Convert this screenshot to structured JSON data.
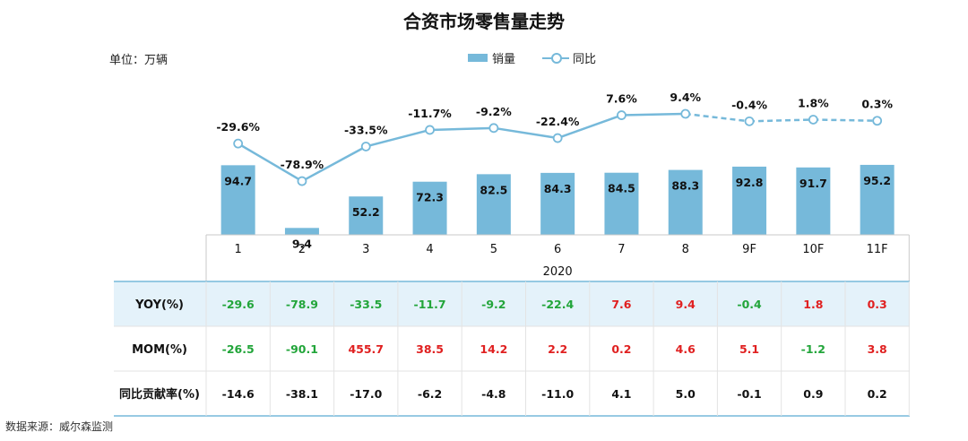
{
  "chart_data": {
    "type": "bar",
    "title": "合资市场零售量走势",
    "unit_label": "单位：万辆",
    "categories": [
      "1",
      "2",
      "3",
      "4",
      "5",
      "6",
      "7",
      "8",
      "9F",
      "10F",
      "11F"
    ],
    "year_label": "2020",
    "series": [
      {
        "name": "销量",
        "type": "bar",
        "values": [
          94.7,
          9.4,
          52.2,
          72.3,
          82.5,
          84.3,
          84.5,
          88.3,
          92.8,
          91.7,
          95.2
        ]
      },
      {
        "name": "同比",
        "type": "line",
        "values": [
          -29.6,
          -78.9,
          -33.5,
          -11.7,
          -9.2,
          -22.4,
          7.6,
          9.4,
          -0.4,
          1.8,
          0.3
        ],
        "labels": [
          "-29.6%",
          "-78.9%",
          "-33.5%",
          "-11.7%",
          "-9.2%",
          "-22.4%",
          "7.6%",
          "9.4%",
          "-0.4%",
          "1.8%",
          "0.3%"
        ],
        "dashed_from_index": 8
      }
    ],
    "table": {
      "rows": [
        {
          "label": "YOY(%)",
          "values": [
            "-29.6",
            "-78.9",
            "-33.5",
            "-11.7",
            "-9.2",
            "-22.4",
            "7.6",
            "9.4",
            "-0.4",
            "1.8",
            "0.3"
          ],
          "highlight": true
        },
        {
          "label": "MOM(%)",
          "values": [
            "-26.5",
            "-90.1",
            "455.7",
            "38.5",
            "14.2",
            "2.2",
            "0.2",
            "4.6",
            "5.1",
            "-1.2",
            "3.8"
          ],
          "highlight": false
        },
        {
          "label": "同比贡献率(%)",
          "values": [
            "-14.6",
            "-38.1",
            "-17.0",
            "-6.2",
            "-4.8",
            "-11.0",
            "4.1",
            "5.0",
            "-0.1",
            "0.9",
            "0.2"
          ],
          "highlight": false,
          "neutral": true
        }
      ]
    }
  },
  "source": "数据来源：威尔森监测",
  "colors": {
    "bar": "#76b9da",
    "line": "#76b9da",
    "positive": "#e02020",
    "negative": "#22a53a",
    "highlight_row": "#e4f2fa",
    "grid": "#c9c9c9",
    "table_border": "#76b9da"
  }
}
